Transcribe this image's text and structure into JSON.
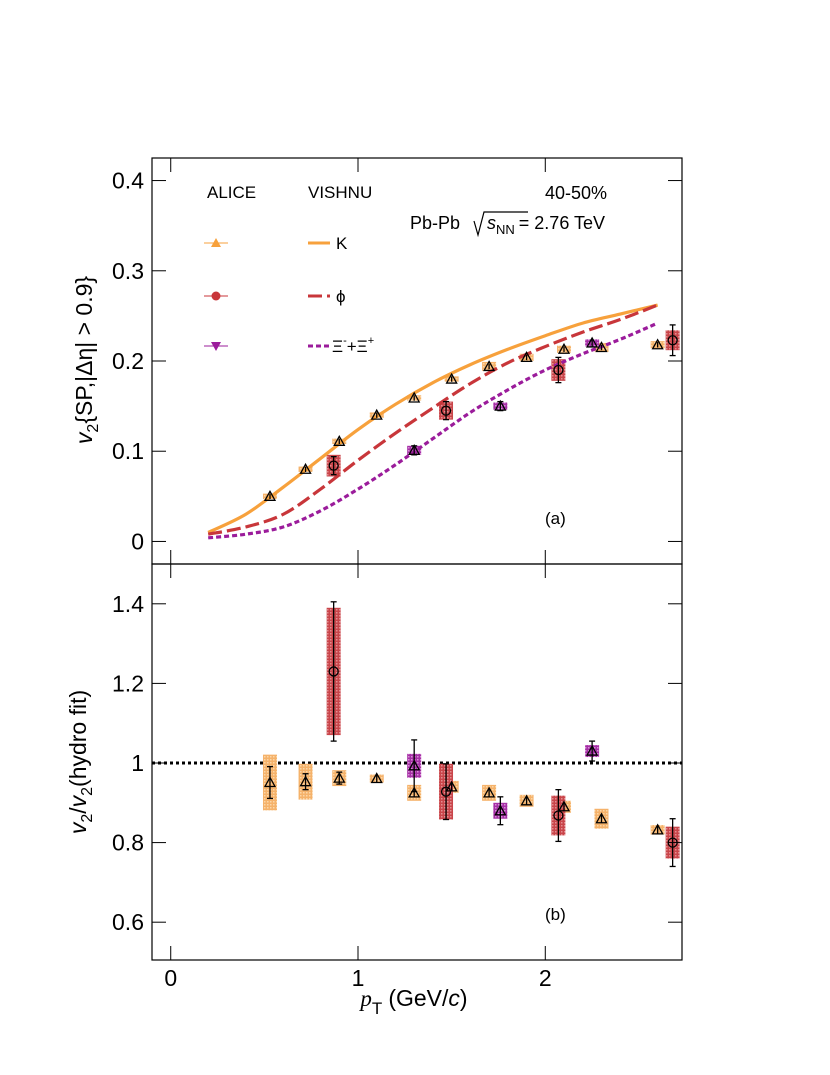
{
  "chart_data": {
    "type": "scatter",
    "x_axis": {
      "label_var": "p",
      "label_sub": "T",
      "label_unit_pre": "(GeV/",
      "label_unit_var": "c",
      "label_unit_post": ")",
      "range": [
        -0.1,
        2.73
      ],
      "ticks": [
        0,
        1,
        2
      ],
      "tick_labels": [
        "0",
        "1",
        "2"
      ]
    },
    "info": {
      "centrality": "40-50%",
      "system": "Pb-Pb",
      "energy_sym": "s",
      "energy_sub": "NN",
      "energy_value": "= 2.76 TeV"
    },
    "legend": {
      "col1_header": "ALICE",
      "col2_header": "VISHNU",
      "placement": "top-left",
      "entries": [
        {
          "key": "K",
          "label": "K",
          "marker": "triangle-up",
          "color": "#f7a13c",
          "line": "solid"
        },
        {
          "key": "phi",
          "label": "ϕ",
          "marker": "circle",
          "color": "#c8363a",
          "line": "long-dash"
        },
        {
          "key": "xi",
          "label_main": "Ξ",
          "label_sup1": "-",
          "label_mid": "+",
          "label_sup2": "+",
          "marker": "triangle-down",
          "color": "#9b1c9b",
          "line": "short-dash"
        }
      ]
    },
    "panels": [
      {
        "id": "a",
        "tag": "(a)",
        "ylabel_var": "v",
        "ylabel_sub": "2",
        "ylabel_rest": "{SP,|Δη| > 0.9}",
        "ylim": [
          -0.025,
          0.425
        ],
        "yticks": [
          0,
          0.1,
          0.2,
          0.3,
          0.4
        ],
        "ytick_labels": [
          "0",
          "0.1",
          "0.2",
          "0.3",
          "0.4"
        ],
        "grid": false,
        "series": [
          {
            "key": "K",
            "points": [
              {
                "x": 0.53,
                "y": 0.05,
                "ey": 0.003,
                "sy": 0.003
              },
              {
                "x": 0.72,
                "y": 0.08,
                "ey": 0.003,
                "sy": 0.003
              },
              {
                "x": 0.9,
                "y": 0.111,
                "ey": 0.003,
                "sy": 0.003
              },
              {
                "x": 1.1,
                "y": 0.14,
                "ey": 0.003,
                "sy": 0.003
              },
              {
                "x": 1.3,
                "y": 0.159,
                "ey": 0.003,
                "sy": 0.003
              },
              {
                "x": 1.5,
                "y": 0.18,
                "ey": 0.003,
                "sy": 0.003
              },
              {
                "x": 1.7,
                "y": 0.194,
                "ey": 0.003,
                "sy": 0.005
              },
              {
                "x": 1.9,
                "y": 0.204,
                "ey": 0.003,
                "sy": 0.004
              },
              {
                "x": 2.1,
                "y": 0.213,
                "ey": 0.003,
                "sy": 0.004
              },
              {
                "x": 2.3,
                "y": 0.215,
                "ey": 0.003,
                "sy": 0.005
              },
              {
                "x": 2.6,
                "y": 0.218,
                "ey": 0.003,
                "sy": 0.004
              }
            ]
          },
          {
            "key": "phi",
            "points": [
              {
                "x": 0.87,
                "y": 0.084,
                "ey": 0.01,
                "sy": 0.012
              },
              {
                "x": 1.47,
                "y": 0.145,
                "ey": 0.01,
                "sy": 0.01
              },
              {
                "x": 2.07,
                "y": 0.19,
                "ey": 0.014,
                "sy": 0.012
              },
              {
                "x": 2.68,
                "y": 0.223,
                "ey": 0.017,
                "sy": 0.011
              }
            ]
          },
          {
            "key": "xi",
            "points": [
              {
                "x": 1.3,
                "y": 0.101,
                "ey": 0.005,
                "sy": 0.005
              },
              {
                "x": 1.76,
                "y": 0.15,
                "ey": 0.005,
                "sy": 0.004
              },
              {
                "x": 2.25,
                "y": 0.22,
                "ey": 0.004,
                "sy": 0.004
              }
            ]
          }
        ],
        "curves": [
          {
            "key": "K",
            "x": [
              0.2,
              0.4,
              0.6,
              0.8,
              1.0,
              1.2,
              1.4,
              1.6,
              1.8,
              2.0,
              2.2,
              2.4,
              2.6
            ],
            "y": [
              0.01,
              0.03,
              0.06,
              0.092,
              0.124,
              0.152,
              0.176,
              0.196,
              0.213,
              0.228,
              0.242,
              0.252,
              0.262
            ]
          },
          {
            "key": "phi",
            "x": [
              0.2,
              0.4,
              0.6,
              0.8,
              1.0,
              1.2,
              1.4,
              1.6,
              1.8,
              2.0,
              2.2,
              2.4,
              2.6
            ],
            "y": [
              0.008,
              0.016,
              0.03,
              0.058,
              0.09,
              0.12,
              0.148,
              0.175,
              0.198,
              0.216,
              0.232,
              0.246,
              0.262
            ]
          },
          {
            "key": "xi",
            "x": [
              0.2,
              0.4,
              0.6,
              0.8,
              1.0,
              1.2,
              1.4,
              1.6,
              1.8,
              2.0,
              2.2,
              2.4,
              2.6
            ],
            "y": [
              0.004,
              0.008,
              0.016,
              0.034,
              0.058,
              0.085,
              0.114,
              0.143,
              0.168,
              0.19,
              0.208,
              0.224,
              0.242
            ]
          }
        ]
      },
      {
        "id": "b",
        "tag": "(b)",
        "ylabel_var1": "v",
        "ylabel_sub1": "2",
        "ylabel_mid": "/",
        "ylabel_var2": "v",
        "ylabel_sub2": "2",
        "ylabel_rest": "(hydro fit)",
        "ylim": [
          0.505,
          1.5
        ],
        "yticks": [
          0.6,
          0.8,
          1.0,
          1.2,
          1.4
        ],
        "ytick_labels": [
          "0.6",
          "0.8",
          "1",
          "1.2",
          "1.4"
        ],
        "grid": false,
        "reference_line": 1.0,
        "series": [
          {
            "key": "K",
            "points": [
              {
                "x": 0.53,
                "y": 0.951,
                "ey": 0.04,
                "sy": 0.07
              },
              {
                "x": 0.72,
                "y": 0.953,
                "ey": 0.02,
                "sy": 0.045
              },
              {
                "x": 0.9,
                "y": 0.962,
                "ey": 0.015,
                "sy": 0.02
              },
              {
                "x": 1.1,
                "y": 0.961,
                "ey": 0.01,
                "sy": 0.01
              },
              {
                "x": 1.3,
                "y": 0.925,
                "ey": 0.01,
                "sy": 0.02
              },
              {
                "x": 1.5,
                "y": 0.94,
                "ey": 0.01,
                "sy": 0.015
              },
              {
                "x": 1.7,
                "y": 0.925,
                "ey": 0.01,
                "sy": 0.02
              },
              {
                "x": 1.9,
                "y": 0.905,
                "ey": 0.01,
                "sy": 0.015
              },
              {
                "x": 2.1,
                "y": 0.89,
                "ey": 0.01,
                "sy": 0.015
              },
              {
                "x": 2.3,
                "y": 0.86,
                "ey": 0.01,
                "sy": 0.025
              },
              {
                "x": 2.6,
                "y": 0.832,
                "ey": 0.01,
                "sy": 0.012
              }
            ]
          },
          {
            "key": "phi",
            "points": [
              {
                "x": 0.87,
                "y": 1.23,
                "ey": 0.175,
                "sy": 0.16
              },
              {
                "x": 1.47,
                "y": 0.928,
                "ey": 0.07,
                "sy": 0.07
              },
              {
                "x": 2.07,
                "y": 0.868,
                "ey": 0.065,
                "sy": 0.05
              },
              {
                "x": 2.68,
                "y": 0.8,
                "ey": 0.06,
                "sy": 0.04
              }
            ]
          },
          {
            "key": "xi",
            "points": [
              {
                "x": 1.3,
                "y": 0.993,
                "ey": 0.065,
                "sy": 0.03
              },
              {
                "x": 1.76,
                "y": 0.88,
                "ey": 0.035,
                "sy": 0.02
              },
              {
                "x": 2.25,
                "y": 1.03,
                "ey": 0.025,
                "sy": 0.015
              }
            ]
          }
        ]
      }
    ]
  }
}
